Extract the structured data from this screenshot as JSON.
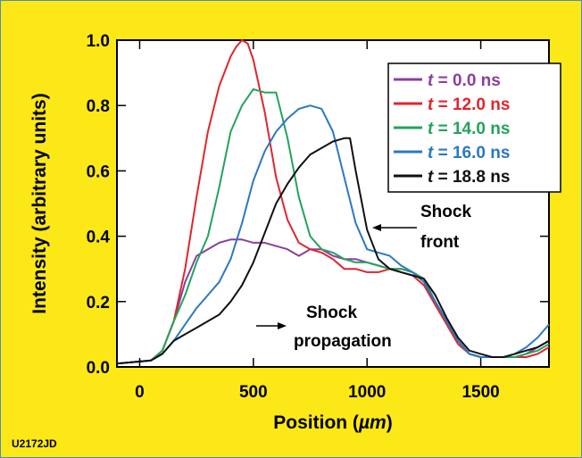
{
  "figure_code": "U2172JD",
  "chart_data": {
    "type": "line",
    "xlabel_main": "Position (",
    "xlabel_unit": "µm",
    "xlabel_close": ")",
    "ylabel": "Intensity (arbitrary units)",
    "xlim": [
      -100,
      1800
    ],
    "ylim": [
      0,
      1.0
    ],
    "xticks": [
      0,
      500,
      1000,
      1500
    ],
    "yticks": [
      0.0,
      0.2,
      0.4,
      0.6,
      0.8,
      1.0
    ],
    "ytick_labels": [
      "0.0",
      "0.2",
      "0.4",
      "0.6",
      "0.8",
      "1.0"
    ],
    "legend_position": "top-right",
    "series": [
      {
        "name": "t = 0.0 ns",
        "time_label": "t",
        "value_label": " = 0.0 ns",
        "color": "#8b3fa0",
        "x": [
          -100,
          50,
          100,
          150,
          200,
          250,
          300,
          350,
          400,
          450,
          500,
          550,
          600,
          650,
          700,
          750,
          800,
          850,
          900,
          950,
          1000,
          1050,
          1100,
          1150,
          1200,
          1250,
          1300,
          1350,
          1400,
          1450,
          1500,
          1550,
          1600,
          1650,
          1700,
          1750,
          1800
        ],
        "y": [
          0.01,
          0.02,
          0.05,
          0.14,
          0.26,
          0.34,
          0.36,
          0.38,
          0.39,
          0.39,
          0.38,
          0.38,
          0.37,
          0.36,
          0.34,
          0.36,
          0.36,
          0.34,
          0.33,
          0.33,
          0.32,
          0.31,
          0.3,
          0.3,
          0.29,
          0.26,
          0.2,
          0.14,
          0.08,
          0.04,
          0.03,
          0.03,
          0.03,
          0.03,
          0.04,
          0.06,
          0.08
        ]
      },
      {
        "name": "t = 12.0 ns",
        "time_label": "t",
        "value_label": " = 12.0 ns",
        "color": "#e0252e",
        "x": [
          -100,
          50,
          100,
          150,
          200,
          250,
          300,
          350,
          400,
          425,
          450,
          475,
          500,
          550,
          600,
          650,
          700,
          750,
          800,
          850,
          900,
          950,
          1000,
          1050,
          1100,
          1150,
          1200,
          1250,
          1300,
          1350,
          1400,
          1450,
          1500,
          1550,
          1600,
          1650,
          1700,
          1750,
          1800
        ],
        "y": [
          0.01,
          0.02,
          0.05,
          0.14,
          0.3,
          0.52,
          0.72,
          0.86,
          0.95,
          0.98,
          1.0,
          0.99,
          0.94,
          0.78,
          0.58,
          0.45,
          0.38,
          0.36,
          0.35,
          0.33,
          0.3,
          0.3,
          0.29,
          0.29,
          0.3,
          0.29,
          0.28,
          0.25,
          0.19,
          0.13,
          0.07,
          0.04,
          0.03,
          0.03,
          0.03,
          0.03,
          0.03,
          0.04,
          0.06
        ]
      },
      {
        "name": "t = 14.0 ns",
        "time_label": "t",
        "value_label": " = 14.0 ns",
        "color": "#23a35a",
        "x": [
          -100,
          50,
          100,
          150,
          200,
          250,
          300,
          350,
          400,
          450,
          500,
          550,
          600,
          650,
          700,
          750,
          800,
          850,
          900,
          950,
          1000,
          1050,
          1100,
          1150,
          1200,
          1250,
          1300,
          1350,
          1400,
          1450,
          1500,
          1550,
          1600,
          1650,
          1700,
          1750,
          1800
        ],
        "y": [
          0.01,
          0.02,
          0.05,
          0.14,
          0.22,
          0.32,
          0.4,
          0.55,
          0.72,
          0.8,
          0.85,
          0.84,
          0.84,
          0.7,
          0.52,
          0.4,
          0.36,
          0.35,
          0.33,
          0.32,
          0.32,
          0.31,
          0.3,
          0.3,
          0.29,
          0.27,
          0.2,
          0.14,
          0.08,
          0.04,
          0.03,
          0.03,
          0.03,
          0.03,
          0.04,
          0.05,
          0.07
        ]
      },
      {
        "name": "t = 16.0 ns",
        "time_label": "t",
        "value_label": " = 16.0 ns",
        "color": "#2b78c2",
        "x": [
          -100,
          50,
          100,
          150,
          200,
          250,
          300,
          350,
          400,
          450,
          500,
          550,
          600,
          650,
          700,
          750,
          800,
          850,
          900,
          950,
          1000,
          1050,
          1100,
          1150,
          1200,
          1250,
          1300,
          1350,
          1400,
          1450,
          1500,
          1550,
          1600,
          1650,
          1700,
          1750,
          1800
        ],
        "y": [
          0.01,
          0.02,
          0.04,
          0.08,
          0.13,
          0.18,
          0.22,
          0.26,
          0.33,
          0.44,
          0.57,
          0.66,
          0.72,
          0.76,
          0.79,
          0.8,
          0.79,
          0.72,
          0.58,
          0.44,
          0.36,
          0.35,
          0.34,
          0.31,
          0.29,
          0.26,
          0.2,
          0.14,
          0.08,
          0.04,
          0.03,
          0.03,
          0.03,
          0.04,
          0.06,
          0.09,
          0.13
        ]
      },
      {
        "name": "t = 18.8 ns",
        "time_label": "t",
        "value_label": " = 18.8 ns",
        "color": "#111111",
        "x": [
          -100,
          50,
          100,
          150,
          200,
          250,
          300,
          350,
          400,
          450,
          500,
          550,
          600,
          650,
          700,
          750,
          800,
          850,
          900,
          925,
          950,
          1000,
          1050,
          1100,
          1150,
          1200,
          1250,
          1300,
          1350,
          1400,
          1450,
          1500,
          1550,
          1600,
          1650,
          1700,
          1750,
          1800
        ],
        "y": [
          0.01,
          0.02,
          0.04,
          0.08,
          0.1,
          0.12,
          0.14,
          0.16,
          0.2,
          0.25,
          0.32,
          0.41,
          0.5,
          0.56,
          0.61,
          0.65,
          0.67,
          0.69,
          0.7,
          0.7,
          0.6,
          0.42,
          0.33,
          0.3,
          0.29,
          0.28,
          0.27,
          0.22,
          0.15,
          0.09,
          0.05,
          0.04,
          0.03,
          0.03,
          0.04,
          0.05,
          0.06,
          0.08
        ]
      }
    ],
    "annotations": {
      "shock_front": {
        "lines": [
          "Shock",
          "front"
        ]
      },
      "shock_propagation": {
        "lines": [
          "Shock",
          "propagation"
        ]
      }
    }
  }
}
